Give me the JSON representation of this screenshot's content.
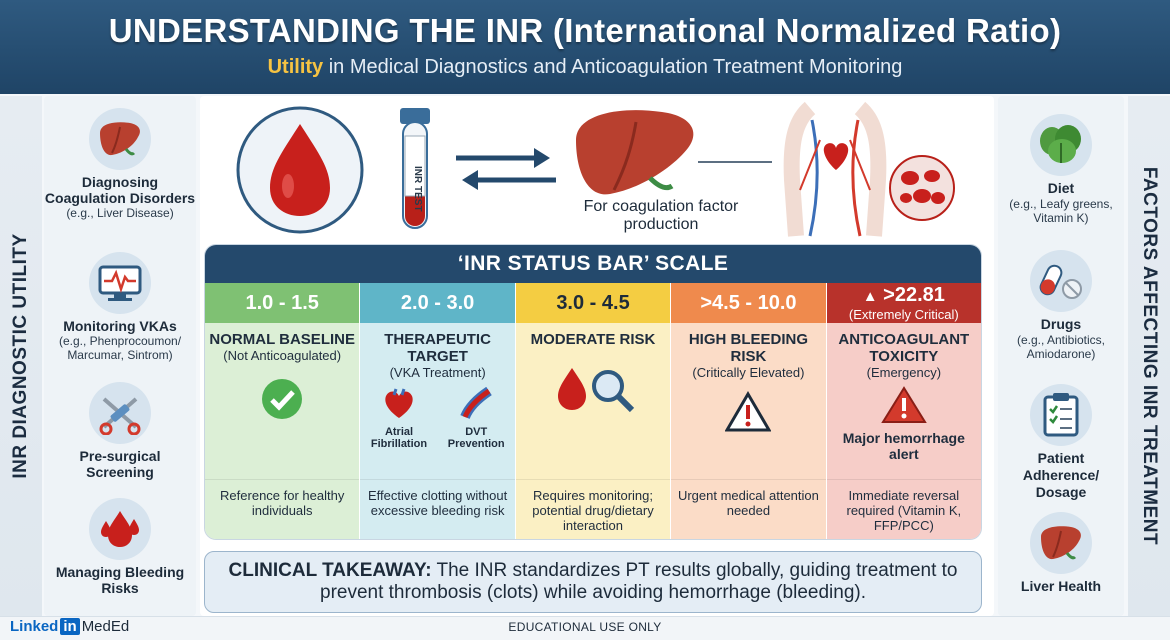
{
  "header": {
    "title": "UNDERSTANDING THE INR (International Normalized Ratio)",
    "subtitle_accent": "Utility",
    "subtitle_rest": " in Medical Diagnostics and Anticoagulation Treatment Monitoring"
  },
  "left_column": {
    "label": "INR DIAGNOSTIC UTILITY",
    "items": [
      {
        "icon": "liver-icon",
        "label": "Diagnosing Coagulation Disorders",
        "sub": "(e.g., Liver Disease)"
      },
      {
        "icon": "monitor-icon",
        "label": "Monitoring VKAs",
        "sub": "(e.g., Phenprocoumon/ Marcumar, Sintrom)"
      },
      {
        "icon": "surgical-tools-icon",
        "label": "Pre-surgical Screening",
        "sub": ""
      },
      {
        "icon": "blood-drops-icon",
        "label": "Managing Bleeding Risks",
        "sub": ""
      }
    ]
  },
  "right_column": {
    "label": "FACTORS AFFECTING INR TREATMENT",
    "items": [
      {
        "icon": "leafy-greens-icon",
        "label": "Diet",
        "sub": "(e.g., Leafy greens, Vitamin K)"
      },
      {
        "icon": "pills-icon",
        "label": "Drugs",
        "sub": "(e.g., Antibiotics, Amiodarone)"
      },
      {
        "icon": "clipboard-icon",
        "label": "Patient Adherence/ Dosage",
        "sub": ""
      },
      {
        "icon": "liver-icon",
        "label": "Liver Health",
        "sub": ""
      }
    ]
  },
  "illustration": {
    "tube_label": "INR TEST",
    "caption": "For coagulation factor production"
  },
  "scale": {
    "title": "‘INR STATUS BAR’ SCALE",
    "columns": [
      {
        "range": "1.0 - 1.5",
        "range_sub": "",
        "name": "NORMAL BASELINE",
        "qual": "(Not Anticoagulated)",
        "icon": "check-icon",
        "icon_labels": [],
        "alert": "",
        "foot": "Reference for healthy individuals"
      },
      {
        "range": "2.0 - 3.0",
        "range_sub": "",
        "name": "THERAPEUTIC TARGET",
        "qual": "(VKA Treatment)",
        "icon": "heart-vein-icon",
        "icon_labels": [
          "Atrial Fibrillation",
          "DVT Prevention"
        ],
        "alert": "",
        "foot": "Effective clotting without excessive bleeding risk"
      },
      {
        "range": "3.0 - 4.5",
        "range_sub": "",
        "name": "MODERATE RISK",
        "qual": "",
        "icon": "drop-magnifier-icon",
        "icon_labels": [],
        "alert": "",
        "foot": "Requires monitoring; potential drug/dietary interaction"
      },
      {
        "range": ">4.5 - 10.0",
        "range_sub": "",
        "name": "HIGH BLEEDING RISK",
        "qual": "(Critically Elevated)",
        "icon": "warning-icon",
        "icon_labels": [],
        "alert": "",
        "foot": "Urgent medical attention needed"
      },
      {
        "range": ">22.81",
        "range_sub": "(Extremely Critical)",
        "name": "ANTICOAGULANT TOXICITY",
        "qual": "(Emergency)",
        "icon": "siren-warning-icon",
        "icon_labels": [],
        "alert": "Major hemorrhage alert",
        "foot": "Immediate reversal required (Vitamin K, FFP/PCC)"
      }
    ]
  },
  "takeaway": {
    "keyword": "CLINICAL TAKEAWAY:",
    "text": " The INR standardizes PT results globally, guiding treatment to prevent thrombosis (clots) while avoiding hemorrhage (bleeding)."
  },
  "footer": {
    "brand_a": "Linked",
    "brand_b": "in",
    "brand_c": "MedEd",
    "note": "EDUCATIONAL USE ONLY"
  }
}
